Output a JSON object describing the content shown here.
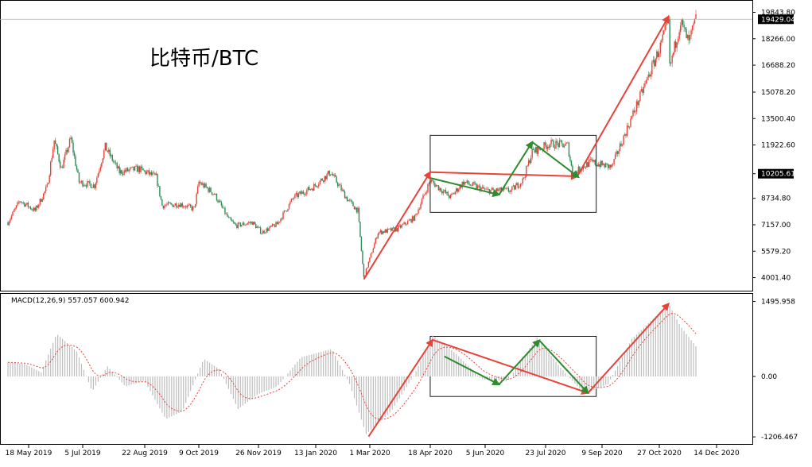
{
  "chart_data": {
    "type": "candlestick",
    "title": "比特币/BTC",
    "price_axis": {
      "ticks": [
        "19843.80",
        "18266.00",
        "16688.20",
        "15078.20",
        "13500.40",
        "11922.60",
        "10205.61",
        "8734.80",
        "7157.00",
        "5579.20",
        "4001.40"
      ],
      "tick_values": [
        19843.8,
        18266.0,
        16688.2,
        15078.2,
        13500.4,
        11922.6,
        10205.61,
        8734.8,
        7157.0,
        5579.2,
        4001.4
      ],
      "current_price_label": "19429.04",
      "current_price": 19429.04,
      "range": [
        3600,
        20200
      ]
    },
    "macd": {
      "label": "MACD(12,26,9) 557.057 600.942",
      "ticks": [
        "1495.958",
        "0.00",
        "-1206.467"
      ],
      "tick_values": [
        1495.958,
        0,
        -1206.467
      ],
      "range": [
        -1300,
        1600
      ]
    },
    "x_axis": {
      "labels": [
        "18 May 2019",
        "5 Jul 2019",
        "22 Aug 2019",
        "9 Oct 2019",
        "26 Nov 2019",
        "13 Jan 2020",
        "1 Mar 2020",
        "18 Apr 2020",
        "5 Jun 2020",
        "23 Jul 2020",
        "9 Sep 2020",
        "27 Oct 2020",
        "14 Dec 2020"
      ],
      "start": "2019-05-18",
      "end": "2020-12-20"
    },
    "series": [
      {
        "date": "2019-05-18",
        "close": 7300
      },
      {
        "date": "2019-05-28",
        "close": 8600
      },
      {
        "date": "2019-06-10",
        "close": 8000
      },
      {
        "date": "2019-06-20",
        "close": 9400
      },
      {
        "date": "2019-06-26",
        "close": 12200
      },
      {
        "date": "2019-07-02",
        "close": 10500
      },
      {
        "date": "2019-07-10",
        "close": 12300
      },
      {
        "date": "2019-07-17",
        "close": 9700
      },
      {
        "date": "2019-07-30",
        "close": 9500
      },
      {
        "date": "2019-08-08",
        "close": 11800
      },
      {
        "date": "2019-08-20",
        "close": 10300
      },
      {
        "date": "2019-09-05",
        "close": 10500
      },
      {
        "date": "2019-09-20",
        "close": 10000
      },
      {
        "date": "2019-09-25",
        "close": 8300
      },
      {
        "date": "2019-10-10",
        "close": 8400
      },
      {
        "date": "2019-10-22",
        "close": 8100
      },
      {
        "date": "2019-10-26",
        "close": 9700
      },
      {
        "date": "2019-11-08",
        "close": 9000
      },
      {
        "date": "2019-11-20",
        "close": 7500
      },
      {
        "date": "2019-11-26",
        "close": 7100
      },
      {
        "date": "2019-12-10",
        "close": 7300
      },
      {
        "date": "2019-12-18",
        "close": 6700
      },
      {
        "date": "2019-12-31",
        "close": 7200
      },
      {
        "date": "2020-01-14",
        "close": 8800
      },
      {
        "date": "2020-01-30",
        "close": 9400
      },
      {
        "date": "2020-02-14",
        "close": 10300
      },
      {
        "date": "2020-02-28",
        "close": 8700
      },
      {
        "date": "2020-03-08",
        "close": 8000
      },
      {
        "date": "2020-03-13",
        "close": 4000
      },
      {
        "date": "2020-03-25",
        "close": 6700
      },
      {
        "date": "2020-04-10",
        "close": 6900
      },
      {
        "date": "2020-04-25",
        "close": 7600
      },
      {
        "date": "2020-05-08",
        "close": 9800
      },
      {
        "date": "2020-05-25",
        "close": 8800
      },
      {
        "date": "2020-06-05",
        "close": 9700
      },
      {
        "date": "2020-06-25",
        "close": 9200
      },
      {
        "date": "2020-07-15",
        "close": 9200
      },
      {
        "date": "2020-07-25",
        "close": 9800
      },
      {
        "date": "2020-08-02",
        "close": 11500
      },
      {
        "date": "2020-08-17",
        "close": 12000
      },
      {
        "date": "2020-09-01",
        "close": 11900
      },
      {
        "date": "2020-09-05",
        "close": 10200
      },
      {
        "date": "2020-09-20",
        "close": 10900
      },
      {
        "date": "2020-10-08",
        "close": 10600
      },
      {
        "date": "2020-10-21",
        "close": 12900
      },
      {
        "date": "2020-11-05",
        "close": 15500
      },
      {
        "date": "2020-11-18",
        "close": 17800
      },
      {
        "date": "2020-11-25",
        "close": 19300
      },
      {
        "date": "2020-11-26",
        "close": 16500
      },
      {
        "date": "2020-12-05",
        "close": 19300
      },
      {
        "date": "2020-12-12",
        "close": 18000
      },
      {
        "date": "2020-12-18",
        "close": 19429
      }
    ],
    "macd_points": [
      {
        "date": "2019-05-18",
        "macd": 280
      },
      {
        "date": "2019-06-01",
        "macd": 250
      },
      {
        "date": "2019-06-15",
        "macd": 80
      },
      {
        "date": "2019-06-28",
        "macd": 850
      },
      {
        "date": "2019-07-15",
        "macd": 500
      },
      {
        "date": "2019-07-28",
        "macd": -300
      },
      {
        "date": "2019-08-10",
        "macd": 200
      },
      {
        "date": "2019-08-25",
        "macd": -200
      },
      {
        "date": "2019-09-10",
        "macd": -80
      },
      {
        "date": "2019-09-28",
        "macd": -850
      },
      {
        "date": "2019-10-12",
        "macd": -700
      },
      {
        "date": "2019-10-30",
        "macd": 350
      },
      {
        "date": "2019-11-12",
        "macd": 150
      },
      {
        "date": "2019-11-28",
        "macd": -650
      },
      {
        "date": "2019-12-15",
        "macd": -350
      },
      {
        "date": "2019-12-31",
        "macd": -200
      },
      {
        "date": "2020-01-20",
        "macd": 380
      },
      {
        "date": "2020-02-15",
        "macd": 550
      },
      {
        "date": "2020-03-01",
        "macd": -150
      },
      {
        "date": "2020-03-15",
        "macd": -1150
      },
      {
        "date": "2020-04-05",
        "macd": -700
      },
      {
        "date": "2020-04-25",
        "macd": 50
      },
      {
        "date": "2020-05-10",
        "macd": 820
      },
      {
        "date": "2020-05-30",
        "macd": 450
      },
      {
        "date": "2020-06-20",
        "macd": -50
      },
      {
        "date": "2020-07-12",
        "macd": -100
      },
      {
        "date": "2020-08-06",
        "macd": 780
      },
      {
        "date": "2020-08-25",
        "macd": 200
      },
      {
        "date": "2020-09-15",
        "macd": -350
      },
      {
        "date": "2020-10-05",
        "macd": -150
      },
      {
        "date": "2020-10-25",
        "macd": 750
      },
      {
        "date": "2020-11-12",
        "macd": 1150
      },
      {
        "date": "2020-11-25",
        "macd": 1450
      },
      {
        "date": "2020-12-05",
        "macd": 1000
      },
      {
        "date": "2020-12-18",
        "macd": 600
      }
    ],
    "trend_arrows_price": [
      {
        "color": "#e8433a",
        "from": {
          "date": "2020-03-13",
          "value": 3900
        },
        "to": {
          "date": "2020-05-08",
          "value": 10300
        }
      },
      {
        "color": "#e8433a",
        "from": {
          "date": "2020-05-08",
          "value": 10300
        },
        "to": {
          "date": "2020-09-09",
          "value": 10050
        }
      },
      {
        "color": "#e8433a",
        "from": {
          "date": "2020-09-09",
          "value": 10050
        },
        "to": {
          "date": "2020-11-25",
          "value": 19600
        }
      },
      {
        "color": "#2e8b2e",
        "from": {
          "date": "2020-05-08",
          "value": 9950
        },
        "to": {
          "date": "2020-07-05",
          "value": 8950
        }
      },
      {
        "color": "#2e8b2e",
        "from": {
          "date": "2020-07-05",
          "value": 8950
        },
        "to": {
          "date": "2020-08-02",
          "value": 12100
        }
      },
      {
        "color": "#2e8b2e",
        "from": {
          "date": "2020-08-02",
          "value": 12100
        },
        "to": {
          "date": "2020-09-10",
          "value": 10000
        }
      }
    ],
    "trend_arrows_macd": [
      {
        "color": "#e8433a",
        "from": {
          "date": "2020-03-17",
          "macd": -1200
        },
        "to": {
          "date": "2020-05-10",
          "macd": 730
        }
      },
      {
        "color": "#e8433a",
        "from": {
          "date": "2020-05-10",
          "macd": 730
        },
        "to": {
          "date": "2020-09-18",
          "macd": -330
        }
      },
      {
        "color": "#e8433a",
        "from": {
          "date": "2020-09-18",
          "macd": -330
        },
        "to": {
          "date": "2020-11-25",
          "macd": 1450
        }
      },
      {
        "color": "#2e8b2e",
        "from": {
          "date": "2020-05-20",
          "macd": 400
        },
        "to": {
          "date": "2020-07-05",
          "macd": -160
        }
      },
      {
        "color": "#2e8b2e",
        "from": {
          "date": "2020-07-05",
          "macd": -160
        },
        "to": {
          "date": "2020-08-08",
          "macd": 720
        }
      },
      {
        "color": "#2e8b2e",
        "from": {
          "date": "2020-08-08",
          "macd": 720
        },
        "to": {
          "date": "2020-09-18",
          "macd": -330
        }
      }
    ],
    "highlight_boxes": [
      {
        "pane": "price",
        "from": "2020-05-08",
        "to": "2020-09-25",
        "top": 12500,
        "bottom": 7900
      },
      {
        "pane": "macd",
        "from": "2020-05-08",
        "to": "2020-09-25",
        "top": 800,
        "bottom": -400
      }
    ],
    "colors": {
      "bull": "#e8433a",
      "bear": "#2e8b57",
      "arrow_red": "#e8433a",
      "arrow_green": "#2e8b2e",
      "macd_hist": "#bdbdbd",
      "signal": "#e8433a"
    }
  }
}
